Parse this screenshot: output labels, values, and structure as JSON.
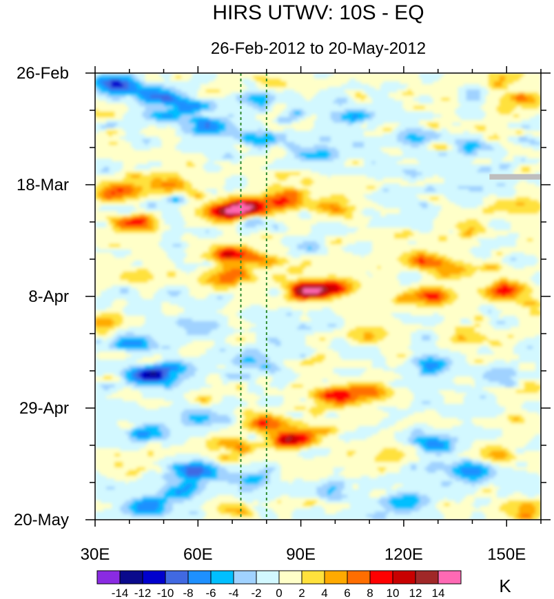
{
  "chart_data": {
    "type": "heatmap",
    "title": "HIRS UTWV: 10S - EQ",
    "subtitle": "26-Feb-2012 to 20-May-2012",
    "xlabel": "",
    "ylabel": "",
    "x_range": [
      30,
      160
    ],
    "x_ticks": [
      {
        "value": 30,
        "label": "30E"
      },
      {
        "value": 60,
        "label": "60E"
      },
      {
        "value": 90,
        "label": "90E"
      },
      {
        "value": 120,
        "label": "120E"
      },
      {
        "value": 150,
        "label": "150E"
      }
    ],
    "y_range": [
      "2012-02-26",
      "2012-05-20"
    ],
    "y_ticks": [
      {
        "value": "2012-02-26",
        "label": "26-Feb"
      },
      {
        "value": "2012-03-18",
        "label": "18-Mar"
      },
      {
        "value": "2012-04-08",
        "label": "8-Apr"
      },
      {
        "value": "2012-04-29",
        "label": "29-Apr"
      },
      {
        "value": "2012-05-20",
        "label": "20-May"
      }
    ],
    "reference_lines_x": [
      72.5,
      80
    ],
    "reference_line_color": "#2e8b2e",
    "missing_color": "#bebebe",
    "missing_region": {
      "x": [
        145,
        160
      ],
      "y": [
        "2012-03-16",
        "2012-03-17"
      ]
    },
    "colorbar": {
      "unit": "K",
      "levels": [
        -14,
        -12,
        -10,
        -8,
        -6,
        -4,
        -2,
        0,
        2,
        4,
        6,
        8,
        10,
        12,
        14
      ],
      "labels": [
        "-14",
        "-12",
        "-10",
        "-8",
        "-6",
        "-4",
        "-2",
        "0",
        "2",
        "4",
        "6",
        "8",
        "10",
        "12",
        "14"
      ],
      "colors": [
        "#8a2be2",
        "#0a0a8c",
        "#0000cd",
        "#4169e1",
        "#1e90ff",
        "#00bfff",
        "#a0d2ff",
        "#d2f8ff",
        "#ffffc8",
        "#ffe13c",
        "#ffaa00",
        "#ff6e00",
        "#ff0000",
        "#c80000",
        "#a02828",
        "#ff69b4"
      ]
    },
    "anomaly_features": [
      {
        "x": 36,
        "date": "2012-02-28",
        "value": -10
      },
      {
        "x": 47,
        "date": "2012-03-01",
        "value": -8
      },
      {
        "x": 58,
        "date": "2012-03-03",
        "value": -7
      },
      {
        "x": 76,
        "date": "2012-03-01",
        "value": -7
      },
      {
        "x": 63,
        "date": "2012-03-07",
        "value": -7
      },
      {
        "x": 78,
        "date": "2012-03-09",
        "value": -7
      },
      {
        "x": 50,
        "date": "2012-03-05",
        "value": -6
      },
      {
        "x": 105,
        "date": "2012-03-05",
        "value": -5
      },
      {
        "x": 125,
        "date": "2012-03-09",
        "value": -6
      },
      {
        "x": 140,
        "date": "2012-03-11",
        "value": -6
      },
      {
        "x": 95,
        "date": "2012-03-12",
        "value": -5
      },
      {
        "x": 155,
        "date": "2012-03-02",
        "value": 6
      },
      {
        "x": 150,
        "date": "2012-02-26",
        "value": 4
      },
      {
        "x": 72,
        "date": "2012-02-29",
        "value": 4
      },
      {
        "x": 82,
        "date": "2012-02-28",
        "value": 3
      },
      {
        "x": 32,
        "date": "2012-03-04",
        "value": 3
      },
      {
        "x": 37,
        "date": "2012-03-19",
        "value": 8
      },
      {
        "x": 50,
        "date": "2012-03-17",
        "value": 4
      },
      {
        "x": 52,
        "date": "2012-03-18",
        "value": 4
      },
      {
        "x": 68,
        "date": "2012-03-23",
        "value": 11
      },
      {
        "x": 74,
        "date": "2012-03-22",
        "value": 12
      },
      {
        "x": 85,
        "date": "2012-03-21",
        "value": 8
      },
      {
        "x": 100,
        "date": "2012-03-22",
        "value": 7
      },
      {
        "x": 40,
        "date": "2012-03-25",
        "value": 9
      },
      {
        "x": 140,
        "date": "2012-03-26",
        "value": 4
      },
      {
        "x": 155,
        "date": "2012-03-22",
        "value": 5
      },
      {
        "x": 68,
        "date": "2012-03-31",
        "value": 10
      },
      {
        "x": 70,
        "date": "2012-04-04",
        "value": 9
      },
      {
        "x": 80,
        "date": "2012-04-01",
        "value": 6
      },
      {
        "x": 92,
        "date": "2012-04-07",
        "value": 15
      },
      {
        "x": 100,
        "date": "2012-04-06",
        "value": 7
      },
      {
        "x": 128,
        "date": "2012-04-08",
        "value": 9
      },
      {
        "x": 150,
        "date": "2012-04-07",
        "value": 10
      },
      {
        "x": 125,
        "date": "2012-04-01",
        "value": 6
      },
      {
        "x": 135,
        "date": "2012-04-03",
        "value": 5
      },
      {
        "x": 42,
        "date": "2012-04-04",
        "value": 4
      },
      {
        "x": 32,
        "date": "2012-04-13",
        "value": 5
      },
      {
        "x": 110,
        "date": "2012-04-15",
        "value": 4
      },
      {
        "x": 140,
        "date": "2012-04-16",
        "value": 3
      },
      {
        "x": 60,
        "date": "2012-04-14",
        "value": -4
      },
      {
        "x": 40,
        "date": "2012-04-17",
        "value": -8
      },
      {
        "x": 52,
        "date": "2012-04-22",
        "value": -7
      },
      {
        "x": 45,
        "date": "2012-04-23",
        "value": -11
      },
      {
        "x": 75,
        "date": "2012-04-20",
        "value": -4
      },
      {
        "x": 128,
        "date": "2012-04-21",
        "value": -7
      },
      {
        "x": 150,
        "date": "2012-04-23",
        "value": -5
      },
      {
        "x": 100,
        "date": "2012-04-27",
        "value": 11
      },
      {
        "x": 110,
        "date": "2012-04-26",
        "value": 7
      },
      {
        "x": 155,
        "date": "2012-04-25",
        "value": 5
      },
      {
        "x": 80,
        "date": "2012-05-02",
        "value": 8
      },
      {
        "x": 88,
        "date": "2012-05-05",
        "value": 10
      },
      {
        "x": 68,
        "date": "2012-05-06",
        "value": 5
      },
      {
        "x": 95,
        "date": "2012-05-03",
        "value": 4
      },
      {
        "x": 115,
        "date": "2012-05-08",
        "value": 4
      },
      {
        "x": 148,
        "date": "2012-05-08",
        "value": 5
      },
      {
        "x": 45,
        "date": "2012-05-04",
        "value": -6
      },
      {
        "x": 60,
        "date": "2012-05-01",
        "value": -5
      },
      {
        "x": 130,
        "date": "2012-05-06",
        "value": -8
      },
      {
        "x": 140,
        "date": "2012-05-11",
        "value": -8
      },
      {
        "x": 60,
        "date": "2012-05-11",
        "value": -8
      },
      {
        "x": 55,
        "date": "2012-05-15",
        "value": -6
      },
      {
        "x": 45,
        "date": "2012-05-18",
        "value": -8
      },
      {
        "x": 75,
        "date": "2012-05-13",
        "value": -5
      },
      {
        "x": 100,
        "date": "2012-05-15",
        "value": -5
      },
      {
        "x": 120,
        "date": "2012-05-17",
        "value": -5
      },
      {
        "x": 155,
        "date": "2012-05-18",
        "value": 6
      },
      {
        "x": 110,
        "date": "2012-05-19",
        "value": -2
      },
      {
        "x": 70,
        "date": "2012-05-18",
        "value": 3
      },
      {
        "x": 90,
        "date": "2012-05-11",
        "value": 3
      }
    ]
  }
}
